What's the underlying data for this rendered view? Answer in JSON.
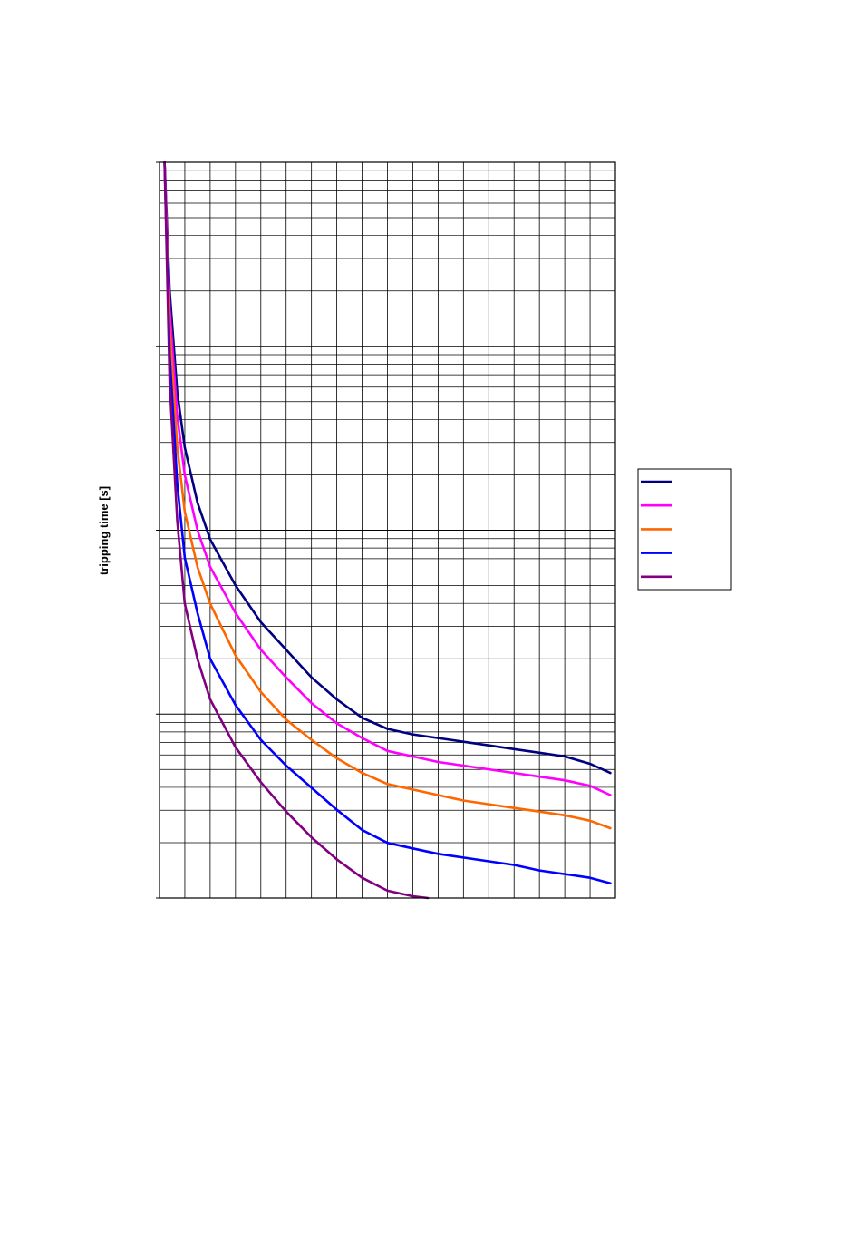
{
  "chart_data": {
    "type": "line",
    "title": "",
    "xlabel": "",
    "ylabel": "tripping time [s]",
    "orientation": "rotated-90-counterclockwise",
    "y_scale": "log",
    "y_decades": 4,
    "grid": true,
    "legend_placement": "right",
    "x_gridlines": 18,
    "series": [
      {
        "color": "#000080",
        "points": [
          [
            0.2,
            4.0
          ],
          [
            0.4,
            3.3
          ],
          [
            0.7,
            2.75
          ],
          [
            1.0,
            2.45
          ],
          [
            1.5,
            2.15
          ],
          [
            2.0,
            1.95
          ],
          [
            3.0,
            1.7
          ],
          [
            4.0,
            1.5
          ],
          [
            5.0,
            1.35
          ],
          [
            6.0,
            1.2
          ],
          [
            7.0,
            1.08
          ],
          [
            8.0,
            0.98
          ],
          [
            9.0,
            0.92
          ],
          [
            10.0,
            0.89
          ],
          [
            11.0,
            0.87
          ],
          [
            12.0,
            0.85
          ],
          [
            13.0,
            0.83
          ],
          [
            14.0,
            0.81
          ],
          [
            15.0,
            0.79
          ],
          [
            16.0,
            0.77
          ],
          [
            17.0,
            0.73
          ],
          [
            17.8,
            0.68
          ]
        ]
      },
      {
        "color": "#ff00ff",
        "points": [
          [
            0.2,
            4.0
          ],
          [
            0.4,
            3.2
          ],
          [
            0.7,
            2.62
          ],
          [
            1.0,
            2.3
          ],
          [
            1.5,
            2.0
          ],
          [
            2.0,
            1.8
          ],
          [
            3.0,
            1.55
          ],
          [
            4.0,
            1.35
          ],
          [
            5.0,
            1.2
          ],
          [
            6.0,
            1.06
          ],
          [
            7.0,
            0.95
          ],
          [
            8.0,
            0.87
          ],
          [
            9.0,
            0.8
          ],
          [
            10.0,
            0.77
          ],
          [
            11.0,
            0.74
          ],
          [
            12.0,
            0.72
          ],
          [
            13.0,
            0.7
          ],
          [
            14.0,
            0.68
          ],
          [
            15.0,
            0.66
          ],
          [
            16.0,
            0.64
          ],
          [
            17.0,
            0.61
          ],
          [
            17.8,
            0.56
          ]
        ]
      },
      {
        "color": "#ff6600",
        "points": [
          [
            0.2,
            4.0
          ],
          [
            0.4,
            3.1
          ],
          [
            0.7,
            2.45
          ],
          [
            1.0,
            2.1
          ],
          [
            1.5,
            1.8
          ],
          [
            2.0,
            1.6
          ],
          [
            3.0,
            1.32
          ],
          [
            4.0,
            1.12
          ],
          [
            5.0,
            0.97
          ],
          [
            6.0,
            0.86
          ],
          [
            7.0,
            0.76
          ],
          [
            8.0,
            0.68
          ],
          [
            9.0,
            0.62
          ],
          [
            10.0,
            0.59
          ],
          [
            11.0,
            0.56
          ],
          [
            12.0,
            0.53
          ],
          [
            13.0,
            0.51
          ],
          [
            14.0,
            0.49
          ],
          [
            15.0,
            0.47
          ],
          [
            16.0,
            0.45
          ],
          [
            17.0,
            0.42
          ],
          [
            17.8,
            0.38
          ]
        ]
      },
      {
        "color": "#0000ff",
        "points": [
          [
            0.2,
            4.0
          ],
          [
            0.4,
            2.95
          ],
          [
            0.7,
            2.25
          ],
          [
            1.0,
            1.85
          ],
          [
            1.5,
            1.55
          ],
          [
            2.0,
            1.3
          ],
          [
            3.0,
            1.05
          ],
          [
            4.0,
            0.86
          ],
          [
            5.0,
            0.72
          ],
          [
            6.0,
            0.6
          ],
          [
            7.0,
            0.48
          ],
          [
            8.0,
            0.37
          ],
          [
            9.0,
            0.3
          ],
          [
            10.0,
            0.27
          ],
          [
            11.0,
            0.24
          ],
          [
            12.0,
            0.22
          ],
          [
            13.0,
            0.2
          ],
          [
            14.0,
            0.18
          ],
          [
            15.0,
            0.15
          ],
          [
            16.0,
            0.13
          ],
          [
            17.0,
            0.11
          ],
          [
            17.8,
            0.08
          ]
        ]
      },
      {
        "color": "#800080",
        "points": [
          [
            0.2,
            4.0
          ],
          [
            0.4,
            2.8
          ],
          [
            0.7,
            2.05
          ],
          [
            1.0,
            1.6
          ],
          [
            1.5,
            1.3
          ],
          [
            2.0,
            1.08
          ],
          [
            3.0,
            0.82
          ],
          [
            4.0,
            0.63
          ],
          [
            5.0,
            0.47
          ],
          [
            6.0,
            0.33
          ],
          [
            7.0,
            0.21
          ],
          [
            8.0,
            0.11
          ],
          [
            9.0,
            0.04
          ],
          [
            10.0,
            0.01
          ],
          [
            10.6,
            0.0
          ]
        ]
      }
    ]
  }
}
